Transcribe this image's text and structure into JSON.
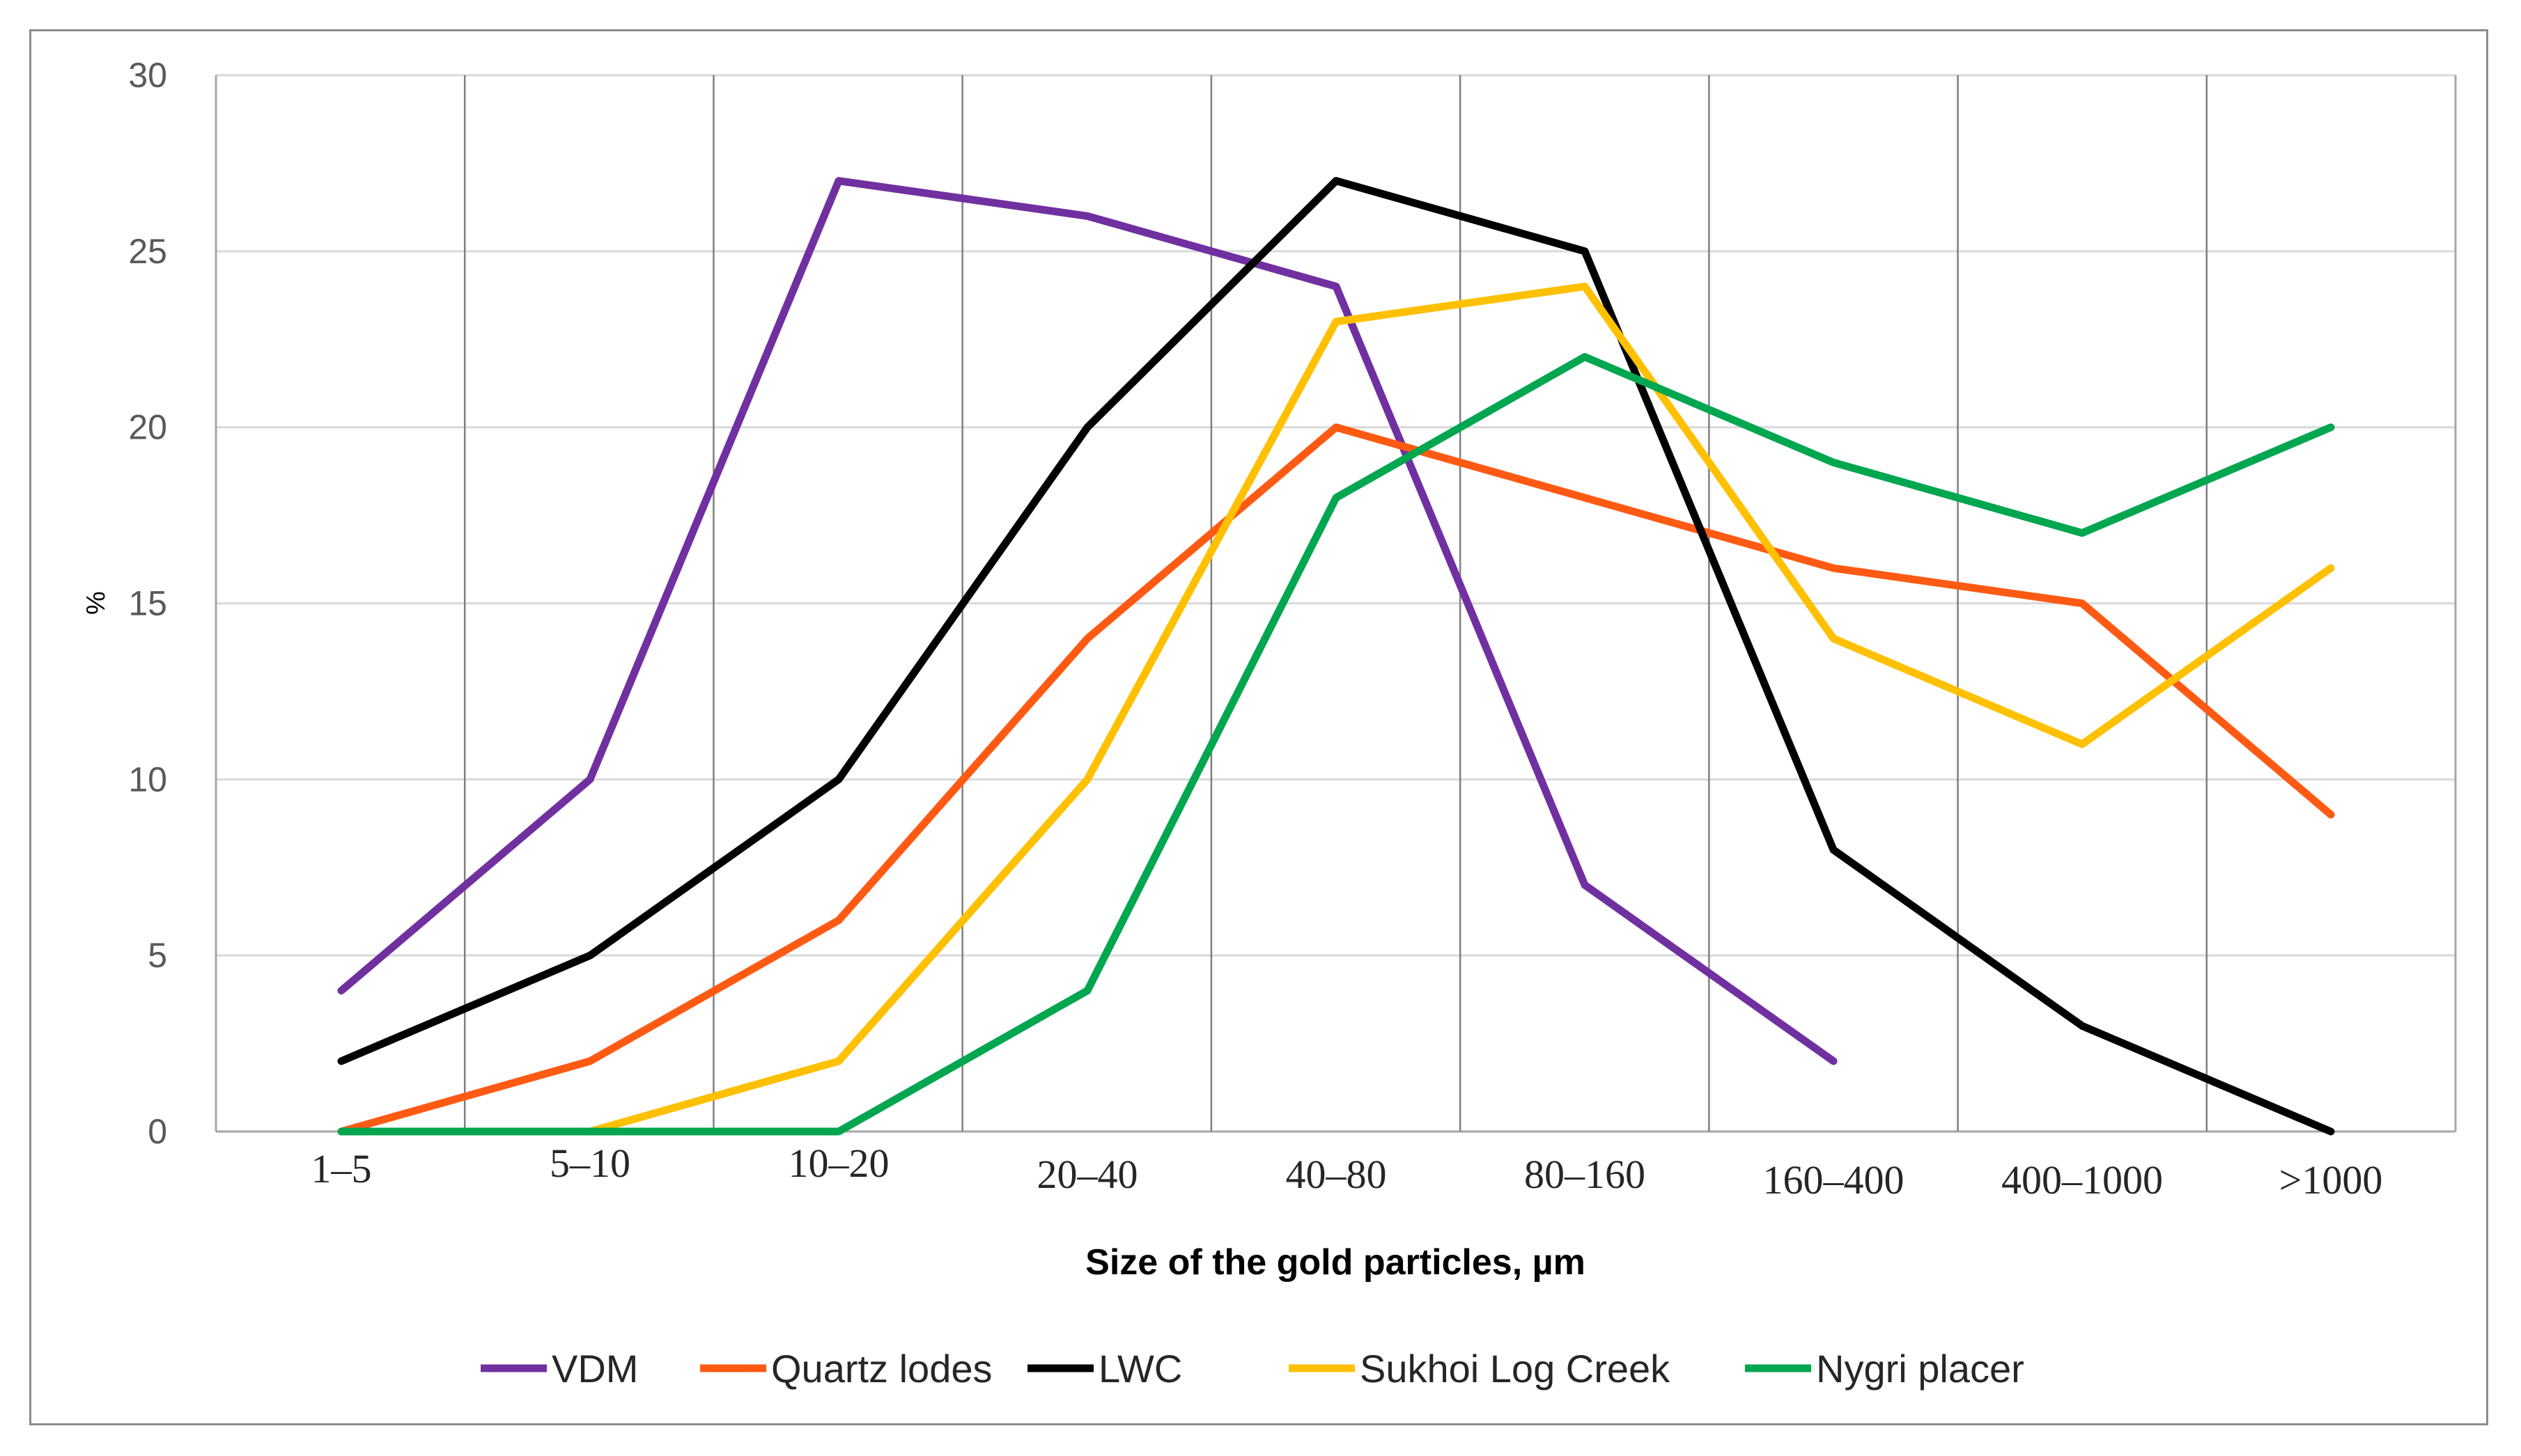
{
  "chart_data": {
    "type": "line",
    "title": "",
    "xlabel": "Size of the gold particles, µm",
    "ylabel": "%",
    "categories": [
      "1–5",
      "5–10",
      "10–20",
      "20–40",
      "40–80",
      "80–160",
      "160–400",
      "400–1000",
      ">1000"
    ],
    "ylim": [
      0,
      30
    ],
    "yticks": [
      0,
      5,
      10,
      15,
      20,
      25,
      30
    ],
    "grid": true,
    "legend_position": "bottom",
    "series": [
      {
        "name": "VDM",
        "color": "#7030a0",
        "values": [
          4,
          10,
          27,
          26,
          24,
          7,
          2,
          null,
          null
        ]
      },
      {
        "name": "Quartz lodes",
        "color": "#ff5a14",
        "values": [
          0,
          2,
          6,
          14,
          20,
          18,
          16,
          15,
          9
        ]
      },
      {
        "name": "LWC",
        "color": "#000000",
        "values": [
          2,
          5,
          10,
          20,
          27,
          25,
          8,
          3,
          0
        ]
      },
      {
        "name": "Sukhoi Log Creek",
        "color": "#ffc000",
        "values": [
          0,
          0,
          2,
          10,
          23,
          24,
          14,
          11,
          16
        ]
      },
      {
        "name": "Nygri placer",
        "color": "#00a650",
        "values": [
          0,
          0,
          0,
          4,
          18,
          22,
          19,
          17,
          20
        ]
      }
    ]
  }
}
